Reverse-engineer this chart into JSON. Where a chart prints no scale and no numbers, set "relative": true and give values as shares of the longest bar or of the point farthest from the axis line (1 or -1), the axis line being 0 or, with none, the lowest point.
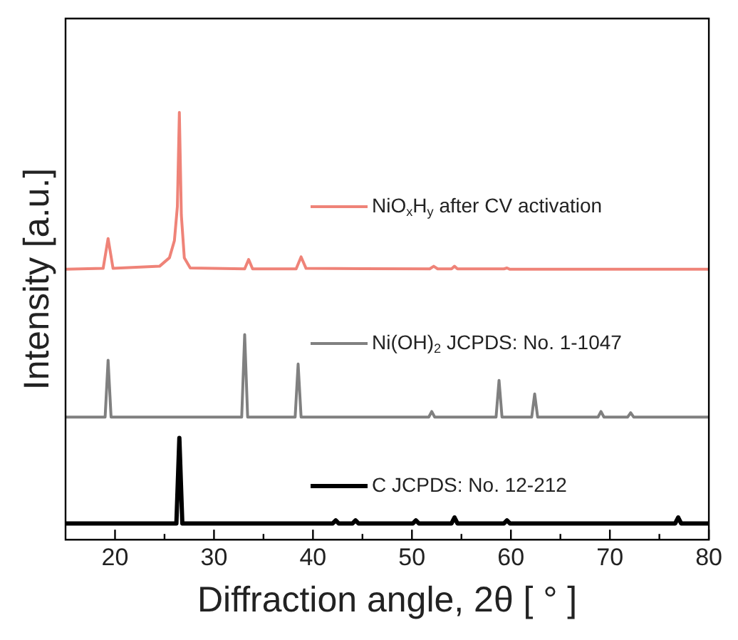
{
  "chart_data": {
    "type": "line",
    "relative": true,
    "xlabel": "Diffraction angle, 2θ [ ° ]",
    "ylabel": "Intensity [a.u.]",
    "xlim": [
      15,
      80
    ],
    "xticks": [
      20,
      {
        "value": 25,
        "label": null
      },
      30,
      {
        "value": 35,
        "label": null
      },
      40,
      {
        "value": 45,
        "label": null
      },
      50,
      {
        "value": 55,
        "label": null
      },
      60,
      {
        "value": 65,
        "label": null
      },
      70,
      {
        "value": 75,
        "label": null
      },
      80
    ],
    "marker": "none",
    "line_style": "solid",
    "legend": "right",
    "series": [
      {
        "name": "NiO$_{x}$H$_{y}$ after CV activation",
        "color": "#ef8378",
        "x": [
          15,
          18.8,
          19.3,
          19.8,
          24.5,
          25.5,
          26.0,
          26.3,
          26.5,
          26.7,
          27.0,
          27.6,
          33.1,
          33.5,
          33.9,
          38.3,
          38.8,
          39.3,
          51.8,
          52.2,
          52.6,
          54.0,
          54.3,
          54.6,
          59.3,
          59.6,
          59.9,
          80
        ],
        "values": [
          0.633,
          0.635,
          0.705,
          0.635,
          0.64,
          0.66,
          0.7,
          0.78,
          1,
          0.76,
          0.66,
          0.636,
          0.634,
          0.656,
          0.634,
          0.634,
          0.662,
          0.635,
          0.634,
          0.64,
          0.634,
          0.634,
          0.64,
          0.634,
          0.634,
          0.636,
          0.633,
          0.633
        ]
      },
      {
        "name": "Ni(OH)$_{2}$ JCPDS: No. 1-1047",
        "color": "#808080",
        "x": [
          15,
          19.0,
          19.3,
          19.6,
          32.8,
          33.1,
          33.4,
          38.2,
          38.5,
          38.8,
          51.7,
          52.0,
          52.3,
          58.5,
          58.8,
          59.1,
          62.1,
          62.4,
          62.7,
          68.8,
          69.1,
          69.4,
          71.8,
          72.1,
          72.4,
          80
        ],
        "values": [
          0.287,
          0.287,
          0.42,
          0.287,
          0.287,
          0.48,
          0.287,
          0.287,
          0.411,
          0.287,
          0.287,
          0.3,
          0.287,
          0.287,
          0.373,
          0.287,
          0.287,
          0.341,
          0.287,
          0.287,
          0.3,
          0.287,
          0.287,
          0.297,
          0.287,
          0.287
        ]
      },
      {
        "name": "C JCPDS: No. 12-212",
        "color": "#000000",
        "x": [
          15,
          26.2,
          26.5,
          26.8,
          42.0,
          42.3,
          42.6,
          44.0,
          44.3,
          44.6,
          50.1,
          50.4,
          50.7,
          54.0,
          54.3,
          54.6,
          59.3,
          59.6,
          59.9,
          76.6,
          76.9,
          77.2,
          80
        ],
        "values": [
          0.038,
          0.038,
          0.238,
          0.038,
          0.038,
          0.045,
          0.038,
          0.038,
          0.045,
          0.038,
          0.038,
          0.045,
          0.038,
          0.038,
          0.052,
          0.038,
          0.038,
          0.045,
          0.038,
          0.038,
          0.052,
          0.038,
          0.038
        ]
      }
    ]
  }
}
